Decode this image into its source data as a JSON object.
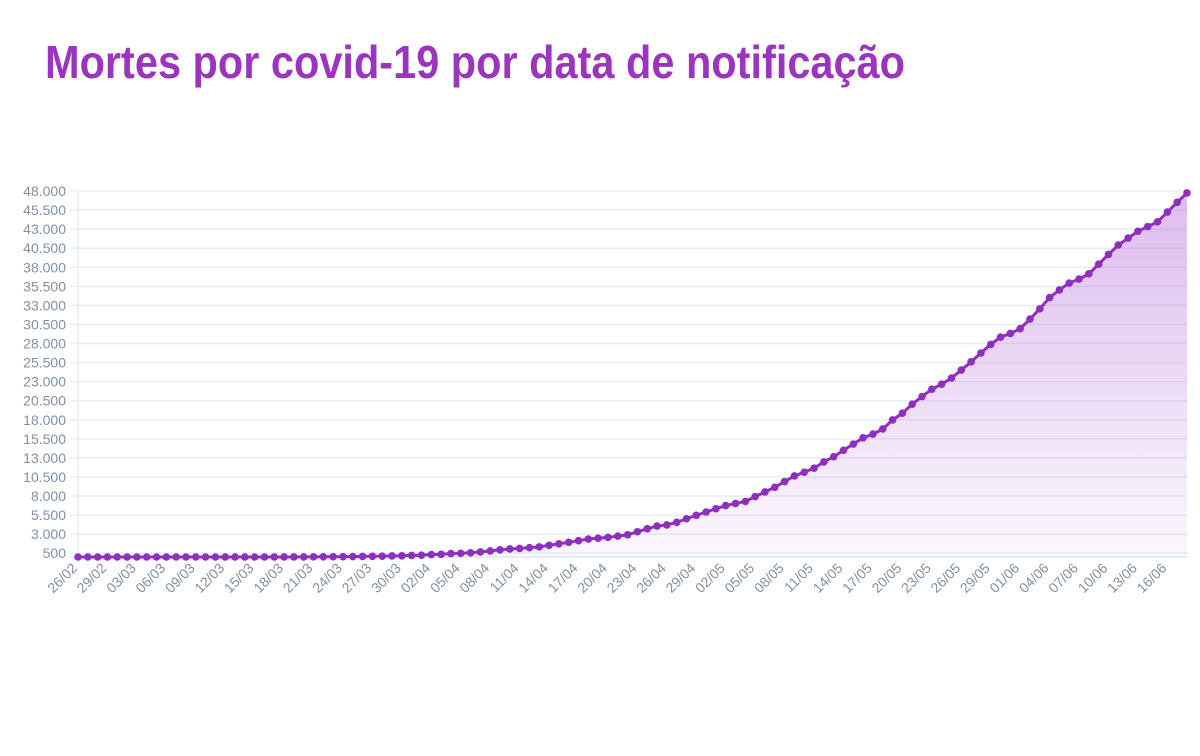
{
  "chart_data": {
    "type": "area",
    "title": "Mortes por covid-19 por data de notificação",
    "color": "#8e2fc0",
    "title_color": "#9b35c0",
    "grid": true,
    "categories": [
      "26/02",
      null,
      null,
      "29/02",
      null,
      null,
      "03/03",
      null,
      null,
      "06/03",
      null,
      null,
      "09/03",
      null,
      null,
      "12/03",
      null,
      null,
      "15/03",
      null,
      null,
      "18/03",
      null,
      null,
      "21/03",
      null,
      null,
      "24/03",
      null,
      null,
      "27/03",
      null,
      null,
      "30/03",
      null,
      null,
      "02/04",
      null,
      null,
      "05/04",
      null,
      null,
      "08/04",
      null,
      null,
      "11/04",
      null,
      null,
      "14/04",
      null,
      null,
      "17/04",
      null,
      null,
      "20/04",
      null,
      null,
      "23/04",
      null,
      null,
      "26/04",
      null,
      null,
      "29/04",
      null,
      null,
      "02/05",
      null,
      null,
      "05/05",
      null,
      null,
      "08/05",
      null,
      null,
      "11/05",
      null,
      null,
      "14/05",
      null,
      null,
      "17/05",
      null,
      null,
      "20/05",
      null,
      null,
      "23/05",
      null,
      null,
      "26/05",
      null,
      null,
      "29/05",
      null,
      null,
      "01/06",
      null,
      null,
      "04/06",
      null,
      null,
      "07/06",
      null,
      null,
      "10/06",
      null,
      null,
      "13/06",
      null,
      null,
      "16/06",
      null,
      null
    ],
    "values": [
      0,
      0,
      0,
      0,
      0,
      0,
      0,
      0,
      0,
      0,
      0,
      0,
      0,
      0,
      0,
      0,
      0,
      0,
      0,
      0,
      1,
      4,
      7,
      11,
      18,
      25,
      34,
      46,
      57,
      77,
      92,
      111,
      136,
      159,
      201,
      240,
      324,
      359,
      445,
      486,
      553,
      667,
      800,
      941,
      1057,
      1124,
      1223,
      1328,
      1532,
      1736,
      1924,
      2141,
      2354,
      2462,
      2575,
      2741,
      2906,
      3313,
      3704,
      4057,
      4205,
      4543,
      5017,
      5466,
      5901,
      6329,
      6750,
      7025,
      7288,
      7921,
      8536,
      9146,
      9897,
      10627,
      11123,
      11653,
      12461,
      13149,
      13993,
      14817,
      15633,
      16118,
      16792,
      17971,
      18859,
      20047,
      21048,
      22013,
      22666,
      23473,
      24512,
      25598,
      26754,
      27878,
      28834,
      29314,
      29937,
      31199,
      32548,
      34021,
      35026,
      35930,
      36455,
      37134,
      38406,
      39680,
      40919,
      41828,
      42720,
      43332,
      43959,
      45241,
      46510,
      47748
    ],
    "ylim": [
      0,
      48000
    ],
    "yticks": [
      500,
      {
        "value": 3000,
        "label": "3.000"
      },
      {
        "value": 5500,
        "label": "5.500"
      },
      {
        "value": 8000,
        "label": "8.000"
      },
      {
        "value": 10500,
        "label": "10.500"
      },
      {
        "value": 13000,
        "label": "13.000"
      },
      {
        "value": 15500,
        "label": "15.500"
      },
      {
        "value": 18000,
        "label": "18.000"
      },
      {
        "value": 20500,
        "label": "20.500"
      },
      {
        "value": 23000,
        "label": "23.000"
      },
      {
        "value": 25500,
        "label": "25.500"
      },
      {
        "value": 28000,
        "label": "28.000"
      },
      {
        "value": 30500,
        "label": "30.500"
      },
      {
        "value": 33000,
        "label": "33.000"
      },
      {
        "value": 35500,
        "label": "35.500"
      },
      {
        "value": 38000,
        "label": "38.000"
      },
      {
        "value": 40500,
        "label": "40.500"
      },
      {
        "value": 43000,
        "label": "43.000"
      },
      {
        "value": 45500,
        "label": "45.500"
      },
      {
        "value": 48000,
        "label": "48.000"
      }
    ]
  }
}
